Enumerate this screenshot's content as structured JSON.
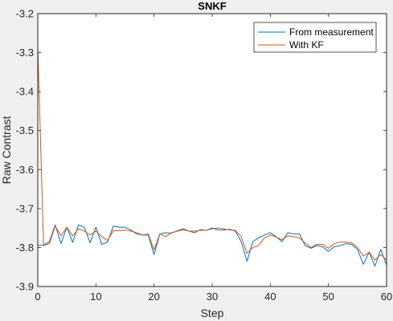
{
  "chart_data": {
    "type": "line",
    "title": "SNKF",
    "xlabel": "Step",
    "ylabel": "Raw Contrast",
    "xlim": [
      0,
      60
    ],
    "ylim": [
      -3.9,
      -3.2
    ],
    "xticks": [
      0,
      10,
      20,
      30,
      40,
      50,
      60
    ],
    "yticks": [
      -3.2,
      -3.3,
      -3.4,
      -3.5,
      -3.6,
      -3.7,
      -3.8,
      -3.9
    ],
    "xtick_labels": [
      "0",
      "10",
      "20",
      "30",
      "40",
      "50",
      "60"
    ],
    "ytick_labels": [
      "-3.2",
      "-3.3",
      "-3.4",
      "-3.5",
      "-3.6",
      "-3.7",
      "-3.8",
      "-3.9"
    ],
    "grid": false,
    "legend_position": "top-right",
    "x": [
      0,
      1,
      2,
      3,
      4,
      5,
      6,
      7,
      8,
      9,
      10,
      11,
      12,
      13,
      14,
      15,
      16,
      17,
      18,
      19,
      20,
      21,
      22,
      23,
      24,
      25,
      26,
      27,
      28,
      29,
      30,
      31,
      32,
      33,
      34,
      35,
      36,
      37,
      38,
      39,
      40,
      41,
      42,
      43,
      44,
      45,
      46,
      47,
      48,
      49,
      50,
      51,
      52,
      53,
      54,
      55,
      56,
      57,
      58,
      59,
      60
    ],
    "series": [
      {
        "name": "From measurement",
        "color": "#0072BD",
        "values": [
          -3.795,
          -3.794,
          -3.785,
          -3.742,
          -3.79,
          -3.748,
          -3.787,
          -3.742,
          -3.748,
          -3.788,
          -3.748,
          -3.792,
          -3.786,
          -3.745,
          -3.748,
          -3.748,
          -3.755,
          -3.765,
          -3.768,
          -3.768,
          -3.818,
          -3.765,
          -3.762,
          -3.763,
          -3.757,
          -3.752,
          -3.758,
          -3.762,
          -3.754,
          -3.756,
          -3.75,
          -3.755,
          -3.755,
          -3.753,
          -3.758,
          -3.785,
          -3.835,
          -3.785,
          -3.775,
          -3.768,
          -3.762,
          -3.772,
          -3.785,
          -3.762,
          -3.765,
          -3.765,
          -3.795,
          -3.802,
          -3.795,
          -3.798,
          -3.81,
          -3.798,
          -3.795,
          -3.79,
          -3.792,
          -3.805,
          -3.843,
          -3.812,
          -3.848,
          -3.805,
          -3.845
        ]
      },
      {
        "name": "With KF",
        "color": "#D95319",
        "values": [
          -3.283,
          -3.795,
          -3.79,
          -3.745,
          -3.77,
          -3.748,
          -3.77,
          -3.752,
          -3.758,
          -3.768,
          -3.758,
          -3.772,
          -3.782,
          -3.757,
          -3.757,
          -3.755,
          -3.758,
          -3.762,
          -3.768,
          -3.765,
          -3.806,
          -3.765,
          -3.772,
          -3.762,
          -3.758,
          -3.755,
          -3.758,
          -3.758,
          -3.756,
          -3.756,
          -3.752,
          -3.75,
          -3.752,
          -3.755,
          -3.756,
          -3.772,
          -3.815,
          -3.8,
          -3.795,
          -3.775,
          -3.768,
          -3.773,
          -3.78,
          -3.77,
          -3.772,
          -3.775,
          -3.788,
          -3.8,
          -3.792,
          -3.792,
          -3.802,
          -3.79,
          -3.786,
          -3.786,
          -3.788,
          -3.8,
          -3.822,
          -3.812,
          -3.832,
          -3.818,
          -3.832
        ]
      }
    ]
  }
}
